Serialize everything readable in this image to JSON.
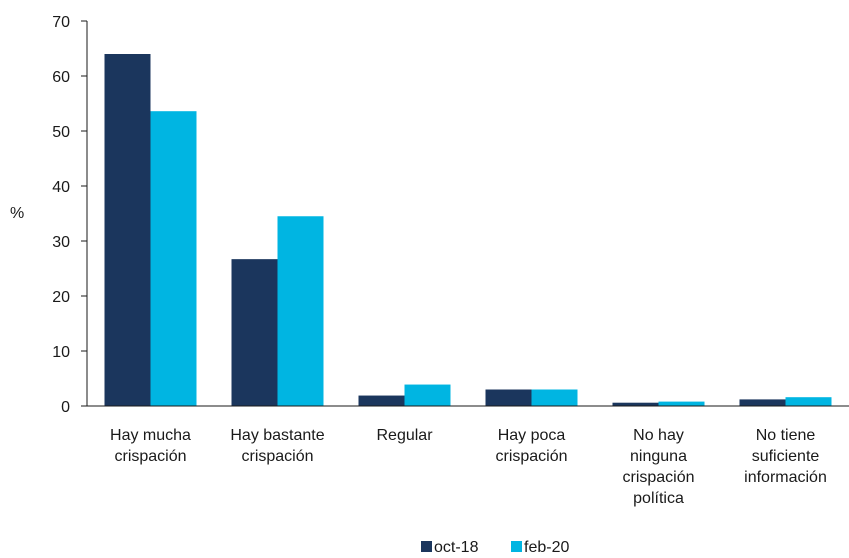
{
  "chart_data": {
    "type": "bar",
    "ylabel": "%",
    "ylim": [
      0,
      70
    ],
    "yticks": [
      0,
      10,
      20,
      30,
      40,
      50,
      60,
      70
    ],
    "grid": false,
    "legend_position": "bottom",
    "categories": [
      [
        "Hay mucha",
        "crispación"
      ],
      [
        "Hay bastante",
        "crispación"
      ],
      [
        "Regular"
      ],
      [
        "Hay poca",
        "crispación"
      ],
      [
        "No hay",
        "ninguna",
        "crispación",
        "política"
      ],
      [
        "No tiene",
        "suficiente",
        "información"
      ]
    ],
    "series": [
      {
        "name": "oct-18",
        "color": "#1b365d",
        "values": [
          64.0,
          26.7,
          1.9,
          3.0,
          0.6,
          1.2
        ]
      },
      {
        "name": "feb-20",
        "color": "#00b5e2",
        "values": [
          53.6,
          34.5,
          3.9,
          3.0,
          0.8,
          1.6
        ]
      }
    ]
  }
}
